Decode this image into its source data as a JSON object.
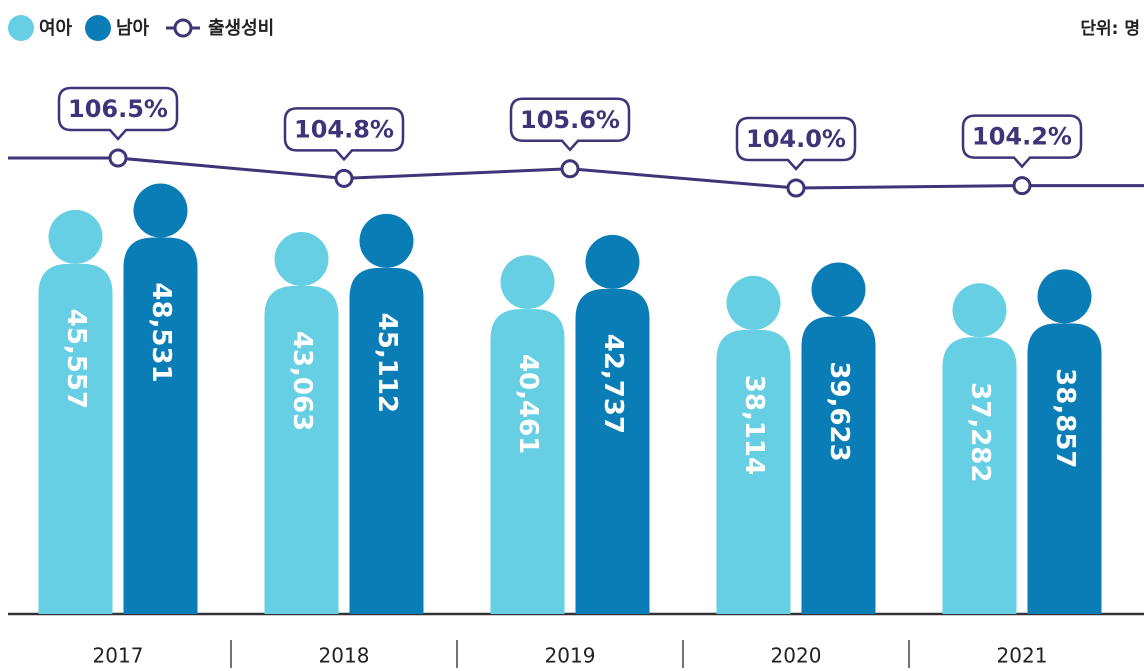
{
  "chart_data": {
    "type": "bar",
    "unit_label": "단위: 명",
    "categories": [
      "2017",
      "2018",
      "2019",
      "2020",
      "2021"
    ],
    "series": [
      {
        "name": "여아",
        "color": "#66cfe4",
        "values": [
          45557,
          43063,
          40461,
          38114,
          37282
        ],
        "value_labels": [
          "45,557",
          "43,063",
          "40,461",
          "38,114",
          "37,282"
        ]
      },
      {
        "name": "남아",
        "color": "#0a7cb6",
        "values": [
          48531,
          45112,
          42737,
          39623,
          38857
        ],
        "value_labels": [
          "48,531",
          "45,112",
          "42,737",
          "39,623",
          "38,857"
        ]
      },
      {
        "name": "출생성비",
        "type": "line",
        "color": "#3f3478",
        "values": [
          106.5,
          104.8,
          105.6,
          104.0,
          104.2
        ],
        "value_labels": [
          "106.5%",
          "104.8%",
          "105.6%",
          "104.0%",
          "104.2%"
        ]
      }
    ]
  }
}
